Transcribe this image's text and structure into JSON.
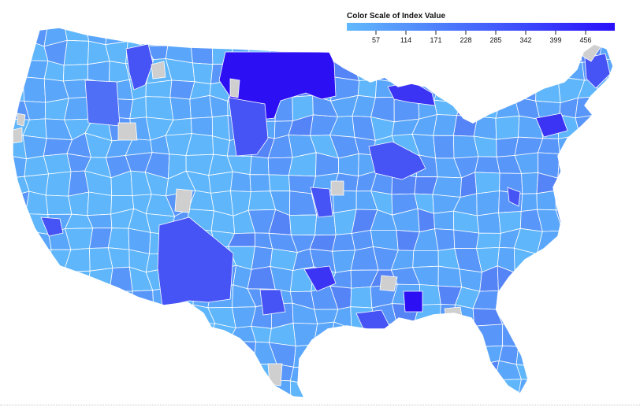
{
  "legend": {
    "title": "Color Scale of Index Value",
    "ticks": [
      "57",
      "114",
      "171",
      "228",
      "285",
      "342",
      "399",
      "456"
    ],
    "color_low": "#61b9fc",
    "color_high": "#2a10fb"
  },
  "colors": {
    "no_data": "#cfcfcf",
    "region_border": "#ffffff",
    "scale_steps": [
      "#5fb6fb",
      "#5aa6fa",
      "#5896f9",
      "#5584f7",
      "#4f6ff6",
      "#4754f5",
      "#3b34f4",
      "#2c10f3"
    ]
  },
  "map_data": {
    "type": "choropleth",
    "region": "contiguous United States",
    "value_range": [
      0,
      513
    ],
    "highlights": [
      {
        "area": "northern Great Plains",
        "level": 7
      },
      {
        "area": "Four Corners",
        "level": 5
      },
      {
        "area": "Minnesota / Upper Peninsula",
        "level": 6
      },
      {
        "area": "southern Appalachia",
        "level": 7
      },
      {
        "area": "central Idaho",
        "level": 5
      },
      {
        "area": "Ohio Valley",
        "level": 5
      },
      {
        "area": "northern New England",
        "level": 5
      }
    ]
  }
}
